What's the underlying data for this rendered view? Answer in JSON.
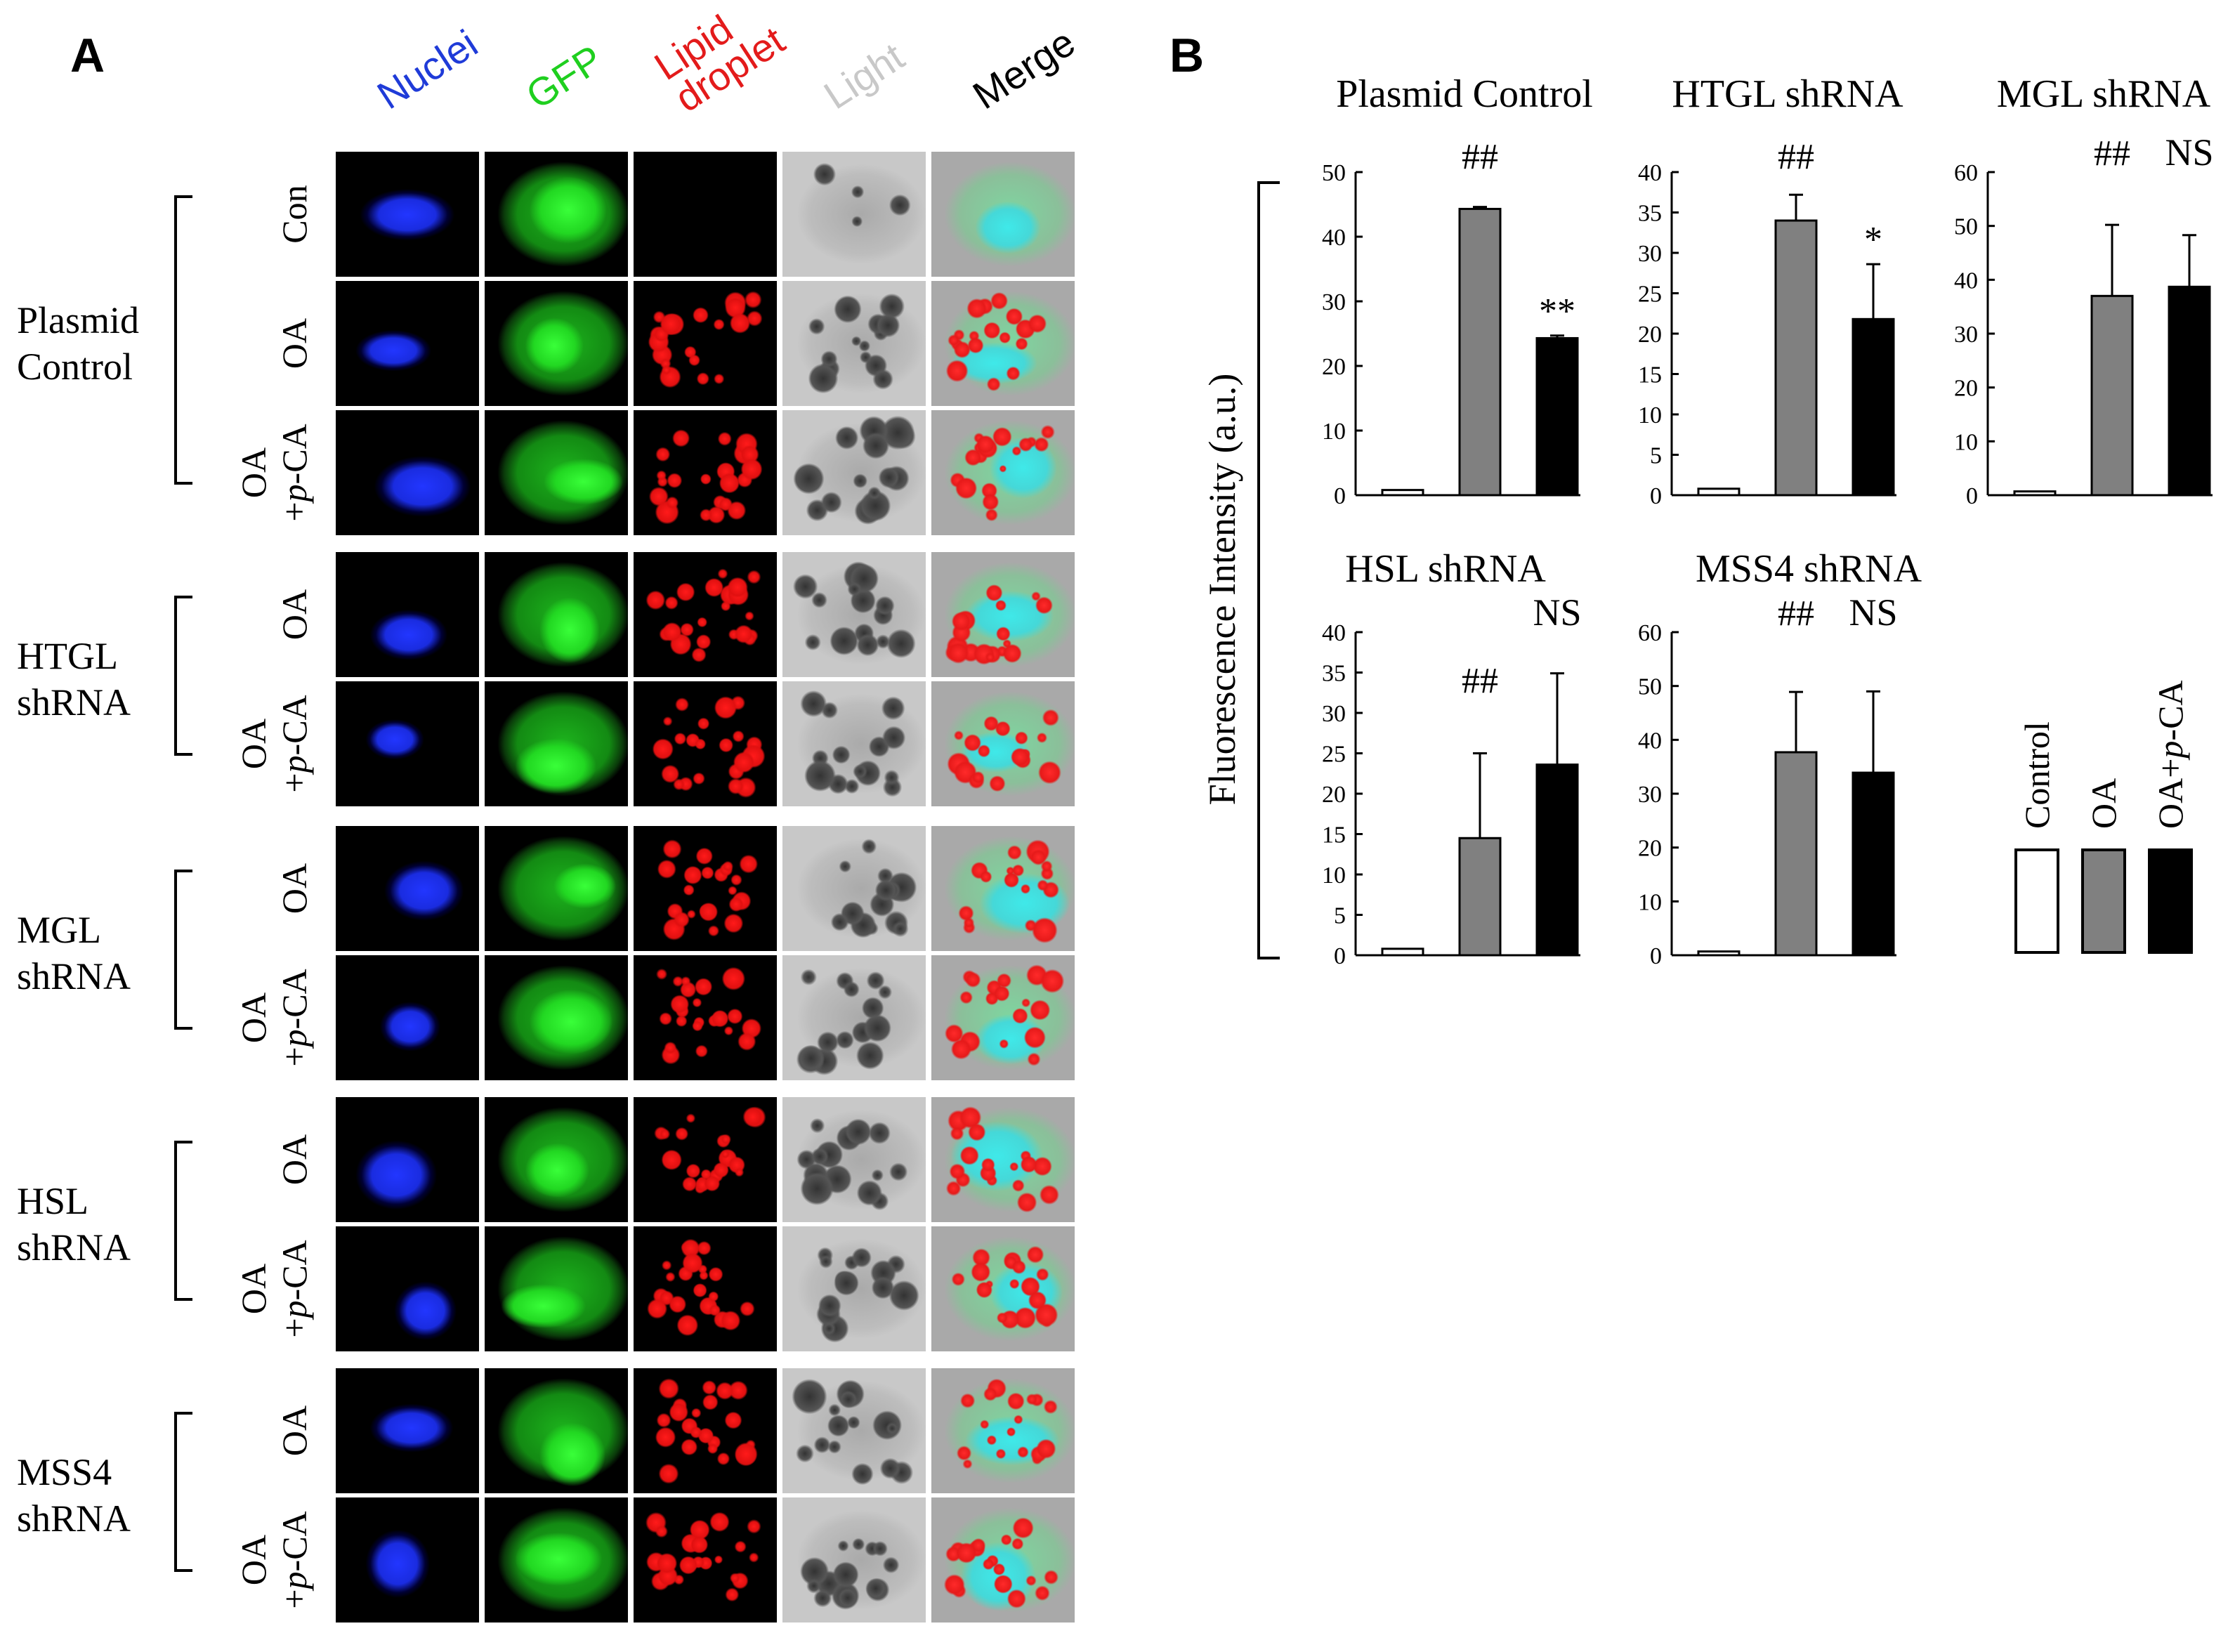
{
  "panel_a": {
    "letter": "A",
    "columns": [
      "Nuclei",
      "GFP",
      "Lipid\ndroplet",
      "Light",
      "Merge"
    ],
    "column_colors": [
      "#1f3bd8",
      "#1fcf1f",
      "#e31b1b",
      "#c8c8c8",
      "#000000"
    ],
    "groups": [
      {
        "label": "Plasmid\nControl",
        "rows": [
          "Con",
          "OA",
          "OA\n+p-CA"
        ]
      },
      {
        "label": "HTGL\nshRNA",
        "rows": [
          "OA",
          "OA\n+p-CA"
        ]
      },
      {
        "label": "MGL\nshRNA",
        "rows": [
          "OA",
          "OA\n+p-CA"
        ]
      },
      {
        "label": "HSL\nshRNA",
        "rows": [
          "OA",
          "OA\n+p-CA"
        ]
      },
      {
        "label": "MSS4\nshRNA",
        "rows": [
          "OA",
          "OA\n+p-CA"
        ]
      }
    ]
  },
  "panel_b": {
    "letter": "B",
    "ylabel": "Fluorescence Intensity (a.u.)",
    "legend": [
      {
        "label": "Control",
        "color": "#ffffff"
      },
      {
        "label": "OA",
        "color": "#808080"
      },
      {
        "label": "OA+p-CA",
        "color": "#000000"
      }
    ]
  },
  "chart_data": [
    {
      "type": "bar",
      "title": "Plasmid Control",
      "categories": [
        "Control",
        "OA",
        "OA+p-CA"
      ],
      "values": [
        0.8,
        44.3,
        24.3
      ],
      "errors": [
        0,
        0.3,
        0.4
      ],
      "ylim": [
        0,
        50
      ],
      "ticks": [
        0,
        10,
        20,
        30,
        40,
        50
      ],
      "annotations": [
        "",
        "##",
        "**"
      ]
    },
    {
      "type": "bar",
      "title": "HTGL shRNA",
      "categories": [
        "Control",
        "OA",
        "OA+p-CA"
      ],
      "values": [
        0.8,
        34.0,
        21.8
      ],
      "errors": [
        0,
        3.2,
        6.8
      ],
      "ylim": [
        0,
        40
      ],
      "ticks": [
        0,
        5,
        10,
        15,
        20,
        25,
        30,
        35,
        40
      ],
      "annotations": [
        "",
        "##",
        "*"
      ]
    },
    {
      "type": "bar",
      "title": "MGL shRNA",
      "categories": [
        "Control",
        "OA",
        "OA+p-CA"
      ],
      "values": [
        0.7,
        37.0,
        38.7
      ],
      "errors": [
        0,
        13.2,
        9.6
      ],
      "ylim": [
        0,
        60
      ],
      "ticks": [
        0,
        10,
        20,
        30,
        40,
        50,
        60
      ],
      "annotations": [
        "",
        "##",
        "NS"
      ]
    },
    {
      "type": "bar",
      "title": "HSL shRNA",
      "categories": [
        "Control",
        "OA",
        "OA+p-CA"
      ],
      "values": [
        0.8,
        14.5,
        23.6
      ],
      "errors": [
        0,
        10.5,
        11.3
      ],
      "ylim": [
        0,
        40
      ],
      "ticks": [
        0,
        5,
        10,
        15,
        20,
        25,
        30,
        35,
        40
      ],
      "annotations": [
        "",
        "##",
        "NS"
      ]
    },
    {
      "type": "bar",
      "title": "MSS4 shRNA",
      "categories": [
        "Control",
        "OA",
        "OA+p-CA"
      ],
      "values": [
        0.7,
        37.7,
        33.9
      ],
      "errors": [
        0,
        11.2,
        15.1
      ],
      "ylim": [
        0,
        60
      ],
      "ticks": [
        0,
        10,
        20,
        30,
        40,
        50,
        60
      ],
      "annotations": [
        "",
        "##",
        "NS"
      ]
    }
  ]
}
